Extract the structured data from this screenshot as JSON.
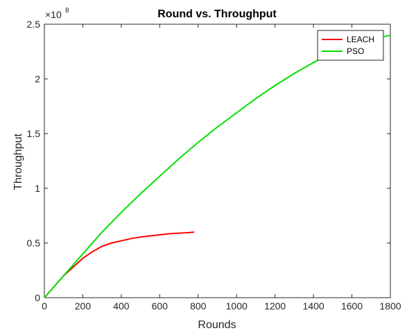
{
  "chart_data": {
    "type": "line",
    "title": "Round vs. Throughput",
    "xlabel": "Rounds",
    "ylabel": "Throughput",
    "exponent_label": "×10",
    "exponent_power": "8",
    "xlim": [
      0,
      1800
    ],
    "ylim": [
      0,
      2.5
    ],
    "y_scale_multiplier": 100000000,
    "xticks": [
      "0",
      "200",
      "400",
      "600",
      "800",
      "1000",
      "1200",
      "1400",
      "1600",
      "1800"
    ],
    "yticks": [
      "0",
      "0.5",
      "1",
      "1.5",
      "2",
      "2.5"
    ],
    "xtick_values": [
      0,
      200,
      400,
      600,
      800,
      1000,
      1200,
      1400,
      1600,
      1800
    ],
    "ytick_values": [
      0,
      0.5,
      1,
      1.5,
      2,
      2.5
    ],
    "grid": false,
    "legend_position": "top-right",
    "series": [
      {
        "name": "LEACH",
        "color": "#ff0000",
        "x": [
          0,
          50,
          100,
          150,
          200,
          250,
          300,
          350,
          400,
          450,
          500,
          550,
          600,
          650,
          700,
          750,
          780
        ],
        "y": [
          0,
          0.1,
          0.2,
          0.28,
          0.36,
          0.42,
          0.47,
          0.5,
          0.52,
          0.54,
          0.555,
          0.565,
          0.575,
          0.585,
          0.59,
          0.595,
          0.6
        ]
      },
      {
        "name": "PSO",
        "color": "#00e000",
        "x": [
          0,
          100,
          200,
          300,
          400,
          500,
          600,
          700,
          800,
          900,
          1000,
          1100,
          1200,
          1300,
          1400,
          1500,
          1600,
          1700,
          1800
        ],
        "y": [
          0,
          0.2,
          0.4,
          0.6,
          0.78,
          0.95,
          1.11,
          1.27,
          1.42,
          1.56,
          1.69,
          1.82,
          1.94,
          2.05,
          2.15,
          2.24,
          2.3,
          2.36,
          2.4
        ]
      }
    ]
  }
}
